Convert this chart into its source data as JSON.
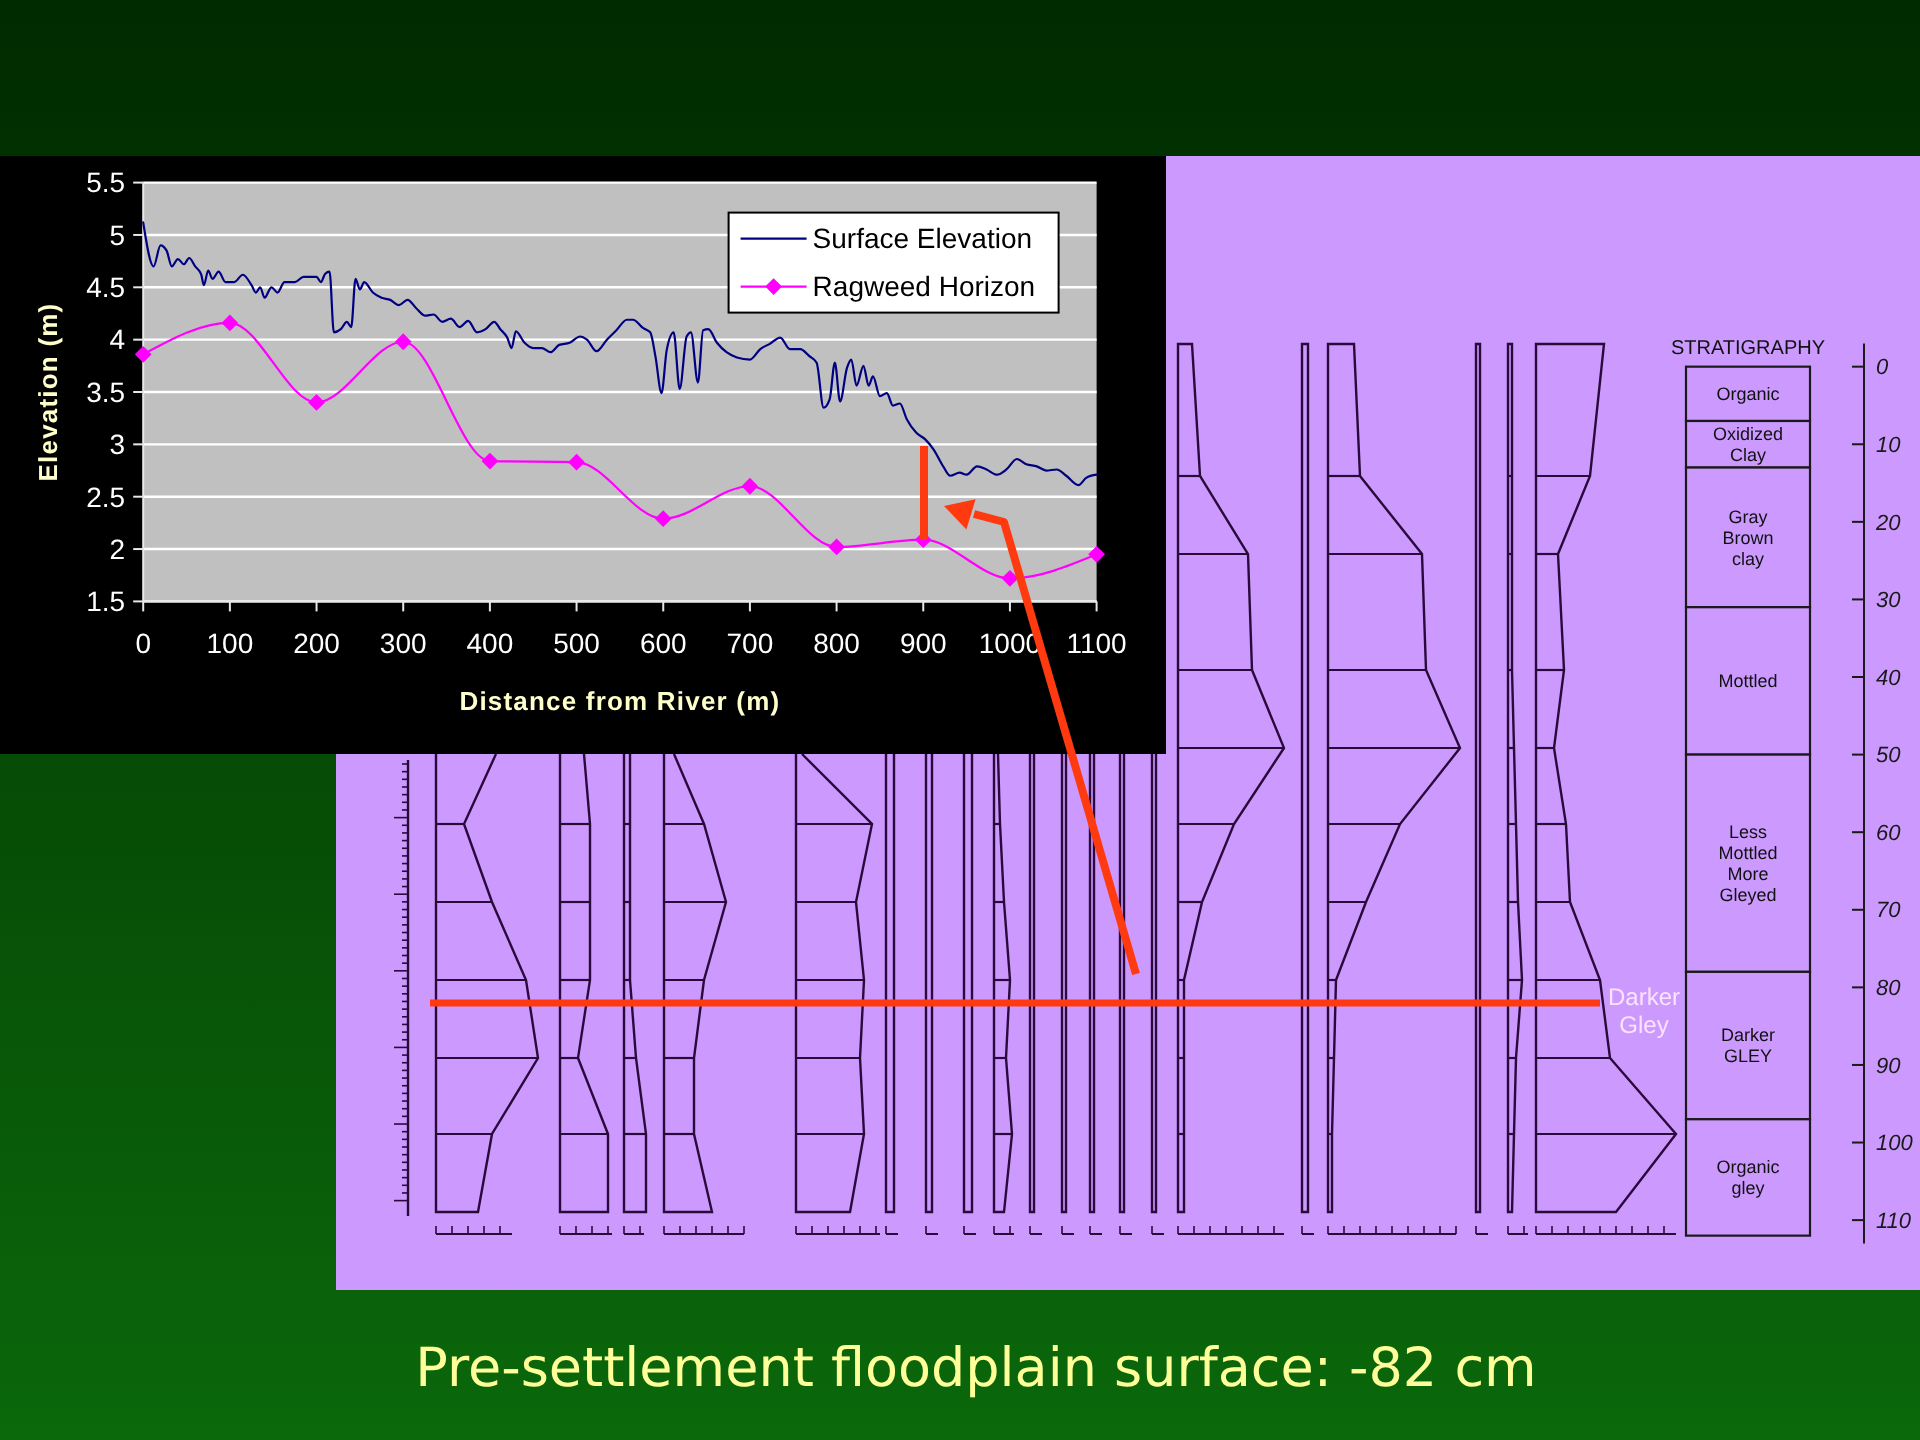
{
  "chart_data": [
    {
      "type": "line",
      "xlabel": "Distance from River (m)",
      "ylabel": "Elevation (m)",
      "xlim": [
        0,
        1100
      ],
      "xticks": [
        0,
        100,
        200,
        300,
        400,
        500,
        600,
        700,
        800,
        900,
        1000,
        1100
      ],
      "ylim": [
        1.5,
        5.5
      ],
      "yticks": [
        1.5,
        2,
        2.5,
        3,
        3.5,
        4,
        4.5,
        5,
        5.5
      ],
      "grid": "y",
      "legend": "top right",
      "series": [
        {
          "name": "Surface Elevation",
          "color": "#000080",
          "marker": "none",
          "x": [
            0,
            12,
            20,
            27,
            33,
            40,
            47,
            53,
            60,
            67,
            70,
            75,
            80,
            87,
            95,
            105,
            115,
            125,
            130,
            135,
            140,
            148,
            155,
            163,
            175,
            185,
            200,
            205,
            210,
            215,
            220,
            228,
            235,
            240,
            245,
            250,
            255,
            265,
            275,
            285,
            295,
            305,
            315,
            325,
            335,
            345,
            355,
            365,
            375,
            385,
            395,
            405,
            412,
            420,
            425,
            430,
            440,
            450,
            460,
            470,
            480,
            492,
            504,
            512,
            523,
            535,
            546,
            558,
            565,
            577,
            585,
            591,
            598,
            604,
            612,
            619,
            627,
            632,
            640,
            646,
            652,
            662,
            673,
            685,
            700,
            712,
            723,
            735,
            746,
            758,
            769,
            777,
            785,
            792,
            798,
            804,
            812,
            817,
            823,
            831,
            837,
            842,
            850,
            858,
            865,
            873,
            881,
            892,
            902,
            912,
            923,
            931,
            942,
            950,
            962,
            973,
            985,
            996,
            1008,
            1019,
            1031,
            1042,
            1054,
            1065,
            1079,
            1088,
            1100
          ],
          "values": [
            5.12,
            4.7,
            4.9,
            4.85,
            4.7,
            4.77,
            4.72,
            4.78,
            4.7,
            4.62,
            4.52,
            4.66,
            4.58,
            4.65,
            4.55,
            4.55,
            4.62,
            4.52,
            4.45,
            4.5,
            4.4,
            4.5,
            4.45,
            4.55,
            4.55,
            4.6,
            4.6,
            4.55,
            4.63,
            4.65,
            4.07,
            4.1,
            4.17,
            4.12,
            4.58,
            4.48,
            4.55,
            4.45,
            4.4,
            4.38,
            4.33,
            4.38,
            4.3,
            4.23,
            4.24,
            4.17,
            4.2,
            4.12,
            4.18,
            4.07,
            4.1,
            4.17,
            4.1,
            4.02,
            3.92,
            4.08,
            3.97,
            3.92,
            3.92,
            3.88,
            3.95,
            3.97,
            4.03,
            4.0,
            3.89,
            4.0,
            4.09,
            4.19,
            4.19,
            4.11,
            4.07,
            3.84,
            3.49,
            3.9,
            4.07,
            3.53,
            4.03,
            4.07,
            3.59,
            4.09,
            4.1,
            3.97,
            3.88,
            3.83,
            3.81,
            3.91,
            3.96,
            4.02,
            3.91,
            3.91,
            3.84,
            3.78,
            3.35,
            3.43,
            3.78,
            3.41,
            3.73,
            3.81,
            3.56,
            3.75,
            3.56,
            3.65,
            3.46,
            3.49,
            3.37,
            3.39,
            3.24,
            3.11,
            3.05,
            2.95,
            2.79,
            2.7,
            2.73,
            2.71,
            2.79,
            2.76,
            2.71,
            2.76,
            2.86,
            2.81,
            2.79,
            2.75,
            2.76,
            2.7,
            2.61,
            2.68,
            2.71
          ]
        },
        {
          "name": "Ragweed Horizon",
          "color": "#ff00ff",
          "marker": "diamond",
          "x": [
            0,
            100,
            200,
            300,
            400,
            500,
            600,
            700,
            800,
            900,
            1000,
            1100
          ],
          "values": [
            3.86,
            4.16,
            3.4,
            3.98,
            2.84,
            2.83,
            2.29,
            2.6,
            2.02,
            2.09,
            1.72,
            1.95
          ]
        }
      ]
    },
    {
      "type": "bar",
      "title": "STRATIGRAPHY",
      "categories": [
        null
      ],
      "stacked": true,
      "ylim": [
        113,
        -3
      ],
      "yticks": [
        0,
        10,
        20,
        30,
        40,
        50,
        60,
        70,
        80,
        90,
        100,
        110
      ],
      "tick_labels": "y",
      "series": [
        {
          "name": "Organic",
          "color": "#cc99ff",
          "values": [
            7
          ]
        },
        {
          "name": "Oxidized Clay",
          "color": "#cc99ff",
          "values": [
            6
          ]
        },
        {
          "name": "Gray Brown clay",
          "color": "#cc99ff",
          "values": [
            18
          ]
        },
        {
          "name": "Mottled",
          "color": "#cc99ff",
          "values": [
            19
          ]
        },
        {
          "name": "Less Mottled More Gleyed",
          "color": "#cc99ff",
          "values": [
            28
          ]
        },
        {
          "name": "Darker GLEY",
          "color": "#cc99ff",
          "values": [
            19
          ]
        },
        {
          "name": "Organic gley",
          "color": "#cc99ff",
          "values": [
            15
          ]
        }
      ],
      "ref_lines": [
        {
          "axis": "y",
          "value": 82,
          "label": "Darker Gley",
          "color": "#ff3a10"
        }
      ],
      "annotations": [
        "Pre-settlement floodplain surface: -82 cm"
      ]
    }
  ]
}
